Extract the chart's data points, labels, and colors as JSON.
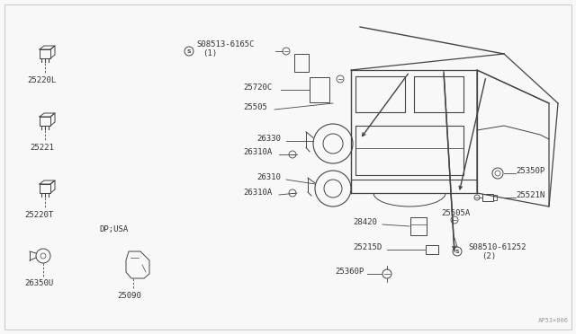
{
  "bg_color": "#f8f8f8",
  "line_color": "#444444",
  "text_color": "#333333",
  "fig_width": 6.4,
  "fig_height": 3.72,
  "dpi": 100,
  "watermark": "AP53×006",
  "left_parts": [
    {
      "label": "25220L",
      "ix": 0.075,
      "iy": 0.8
    },
    {
      "label": "25221",
      "ix": 0.075,
      "iy": 0.58
    },
    {
      "label": "25220T",
      "ix": 0.075,
      "iy": 0.36
    },
    {
      "label": "26350U",
      "ix": 0.075,
      "iy": 0.13
    }
  ]
}
